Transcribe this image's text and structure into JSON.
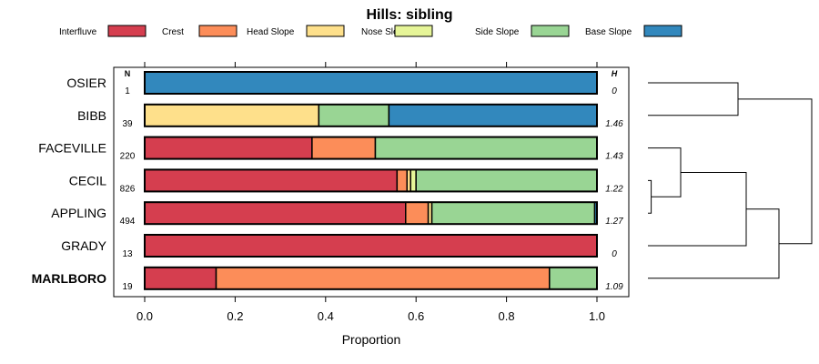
{
  "chart_data": {
    "type": "bar",
    "orientation": "horizontal",
    "stacked": true,
    "title": "Hills: sibling",
    "xlabel": "Proportion",
    "xlim": [
      0,
      1
    ],
    "xticks": [
      "0.0",
      "0.2",
      "0.4",
      "0.6",
      "0.8",
      "1.0"
    ],
    "n_header": "N",
    "h_header": "H",
    "legend": [
      {
        "name": "Interfluve",
        "color": "#d53e4f"
      },
      {
        "name": "Crest",
        "color": "#fc8d59"
      },
      {
        "name": "Head Slope",
        "color": "#fee08b"
      },
      {
        "name": "Nose Slope",
        "color": "#e6f598"
      },
      {
        "name": "Side Slope",
        "color": "#99d594"
      },
      {
        "name": "Base Slope",
        "color": "#3288bd"
      }
    ],
    "rows": [
      {
        "label": "OSIER",
        "n": "1",
        "h": "0",
        "bold": false,
        "values": [
          0,
          0,
          0,
          0,
          0,
          1.0
        ]
      },
      {
        "label": "BIBB",
        "n": "39",
        "h": "1.46",
        "bold": false,
        "values": [
          0,
          0,
          0.385,
          0,
          0.155,
          0.46
        ]
      },
      {
        "label": "FACEVILLE",
        "n": "220",
        "h": "1.43",
        "bold": false,
        "values": [
          0.37,
          0.14,
          0,
          0,
          0.49,
          0
        ]
      },
      {
        "label": "CECIL",
        "n": "826",
        "h": "1.22",
        "bold": false,
        "values": [
          0.558,
          0.022,
          0.008,
          0.012,
          0.4,
          0
        ]
      },
      {
        "label": "APPLING",
        "n": "494",
        "h": "1.27",
        "bold": false,
        "values": [
          0.577,
          0.05,
          0.008,
          0,
          0.36,
          0.005
        ]
      },
      {
        "label": "GRADY",
        "n": "13",
        "h": "0",
        "bold": false,
        "values": [
          1.0,
          0,
          0,
          0,
          0,
          0
        ]
      },
      {
        "label": "MARLBORO",
        "n": "19",
        "h": "1.09",
        "bold": true,
        "values": [
          0.158,
          0.737,
          0,
          0,
          0.105,
          0
        ]
      }
    ],
    "dendrogram": {
      "leaf_order": [
        "OSIER",
        "BIBB",
        "FACEVILLE",
        "CECIL",
        "APPLING",
        "GRADY",
        "MARLBORO"
      ],
      "merges": [
        {
          "a": "CECIL",
          "b": "APPLING",
          "height": 0.02
        },
        {
          "a": "FACEVILLE",
          "b": "CECIL+APPLING",
          "height": 0.2
        },
        {
          "a": "OSIER",
          "b": "BIBB",
          "height": 0.55
        },
        {
          "a": "FACEVILLE+CECIL+APPLING",
          "b": "GRADY",
          "height": 0.6
        },
        {
          "a": "FACEVILLE+CECIL+APPLING+GRADY",
          "b": "MARLBORO",
          "height": 0.8
        },
        {
          "a": "OSIER+BIBB",
          "b": "rest",
          "height": 1.0
        }
      ]
    }
  }
}
